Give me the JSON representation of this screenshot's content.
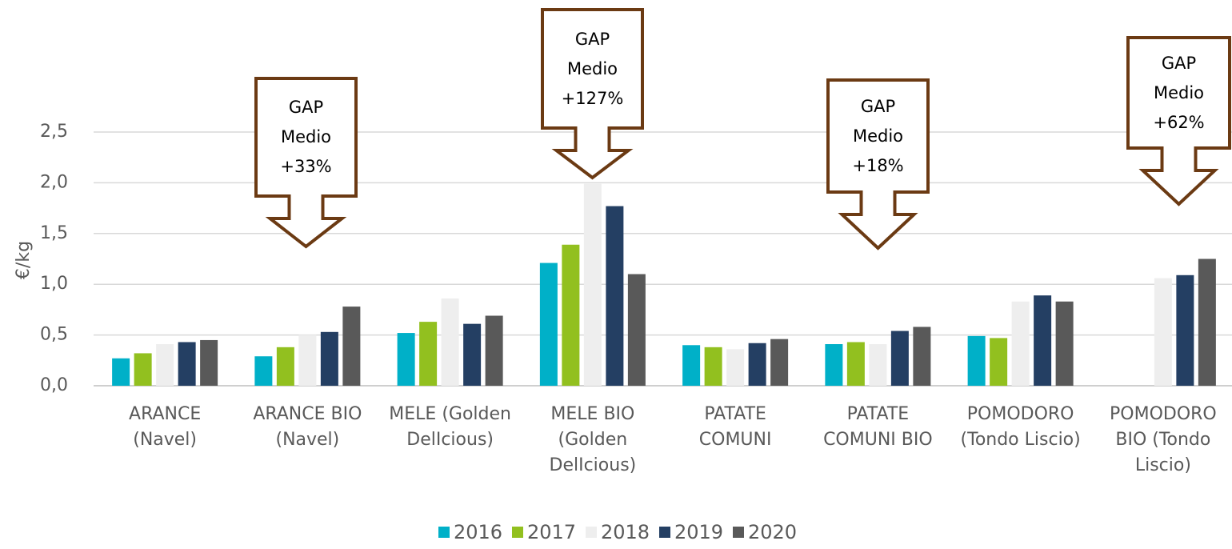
{
  "chart_data": {
    "type": "bar",
    "y_label": "€/kg",
    "categories": [
      "ARANCE (Navel)",
      "ARANCE BIO (Navel)",
      "MELE (Golden DelIcious)",
      "MELE BIO (Golden DelIcious)",
      "PATATE COMUNI",
      "PATATE COMUNI BIO",
      "POMODORO (Tondo Liscio)",
      "POMODORO BIO (Tondo Liscio)"
    ],
    "series": [
      {
        "name": "2016",
        "color": "#00b0c8",
        "values": [
          0.27,
          0.29,
          0.52,
          1.21,
          0.4,
          0.41,
          0.49,
          null
        ]
      },
      {
        "name": "2017",
        "color": "#92c01f",
        "values": [
          0.32,
          0.38,
          0.63,
          1.39,
          0.38,
          0.43,
          0.47,
          null
        ]
      },
      {
        "name": "2018",
        "color": "#eeeeee",
        "values": [
          0.41,
          0.5,
          0.86,
          1.99,
          0.36,
          0.41,
          0.83,
          1.06
        ]
      },
      {
        "name": "2019",
        "color": "#243f63",
        "values": [
          0.43,
          0.53,
          0.61,
          1.77,
          0.42,
          0.54,
          0.89,
          1.09
        ]
      },
      {
        "name": "2020",
        "color": "#595959",
        "values": [
          0.45,
          0.78,
          0.69,
          1.1,
          0.46,
          0.58,
          0.83,
          1.25
        ]
      }
    ],
    "ylim": [
      0,
      2.5
    ],
    "yticks": [
      {
        "value": 0,
        "label": "0,0"
      },
      {
        "value": 0.5,
        "label": "0,5"
      },
      {
        "value": 1,
        "label": "1,0"
      },
      {
        "value": 1.5,
        "label": "1,5"
      },
      {
        "value": 2,
        "label": "2,0"
      },
      {
        "value": 2.5,
        "label": "2,5"
      }
    ],
    "grid": true,
    "legend": "bottom",
    "annotations": [
      "GAP Medio +33%",
      "GAP Medio +127%",
      "GAP Medio +18%",
      "GAP Medio +62%"
    ]
  }
}
